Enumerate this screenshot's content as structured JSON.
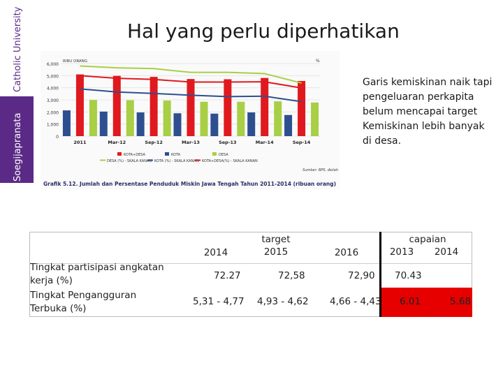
{
  "sidebar": {
    "university": "Catholic University",
    "name": "Soegijapranata"
  },
  "title": "Hal yang perlu diperhatikan",
  "note": "Garis kemiskinan naik tapi pengeluaran perkapita belum mencapai target Kemiskinan lebih banyak di desa.",
  "chart_data": {
    "type": "bar",
    "title": "",
    "caption": "Grafik 5.12. Jumlah dan Persentase Penduduk Miskin Jawa Tengah Tahun 2011-2014 (ribuan orang)",
    "left_axis_unit": "RIBU ORANG",
    "right_axis_unit": "%",
    "source": "Sumber: BPS, diolah",
    "categories": [
      "2011",
      "Mar-12",
      "Sep-12",
      "Mar-13",
      "Sep-13",
      "Mar-14",
      "Sep-14"
    ],
    "y_ticks": [
      "0",
      "1,000",
      "2,000",
      "3,000",
      "4,000",
      "5,000",
      "6,000"
    ],
    "ylim": [
      0,
      6000
    ],
    "series": [
      {
        "name": "KOTA+DESA",
        "kind": "bar",
        "color": "#e0191e",
        "values": [
          5100,
          4980,
          4900,
          4720,
          4700,
          4810,
          4560
        ]
      },
      {
        "name": "KOTA",
        "kind": "bar",
        "color": "#2e4f8f",
        "values": [
          2130,
          2030,
          1960,
          1890,
          1860,
          1960,
          1750
        ]
      },
      {
        "name": "DESA",
        "kind": "bar",
        "color": "#a8cf45",
        "values": [
          2990,
          2970,
          2940,
          2840,
          2840,
          2880,
          2780
        ]
      },
      {
        "name": "DESA (%) - SKALA KANAN",
        "kind": "line",
        "color": "#a8cf45",
        "values": [
          5800,
          5650,
          5580,
          5270,
          5270,
          5170,
          4390
        ]
      },
      {
        "name": "KOTA (%) - SKALA KANAN",
        "kind": "line",
        "color": "#2e4f8f",
        "values": [
          3900,
          3650,
          3530,
          3380,
          3270,
          3300,
          2850
        ]
      },
      {
        "name": "KOTA+DESA(%) - SKALA KANAN",
        "kind": "line",
        "color": "#e0191e",
        "values": [
          5000,
          4780,
          4690,
          4470,
          4470,
          4490,
          3980
        ]
      }
    ],
    "legend_placement": "bottom",
    "grid": true
  },
  "table": {
    "header": {
      "col_2014": "2014",
      "target_label": "target",
      "col_2015": "2015",
      "col_2016": "2016",
      "capaian_label": "capaian",
      "col_2013": "2013",
      "col_2014b": "2014"
    },
    "rows": [
      {
        "label": "Tingkat partisipasi angkatan kerja (%)",
        "v2014": "72.27",
        "v2015": "72,58",
        "v2016": "72,90",
        "c2013": "70.43",
        "c2014": ""
      },
      {
        "label": "Tingkat Pengangguran Terbuka (%)",
        "v2014": "5,31 - 4,77",
        "v2015": "4,93 - 4,62",
        "v2016": "4,66 - 4,43",
        "c2013": "6.01",
        "c2014": "5.68"
      }
    ],
    "highlight_color": "#e60000"
  }
}
